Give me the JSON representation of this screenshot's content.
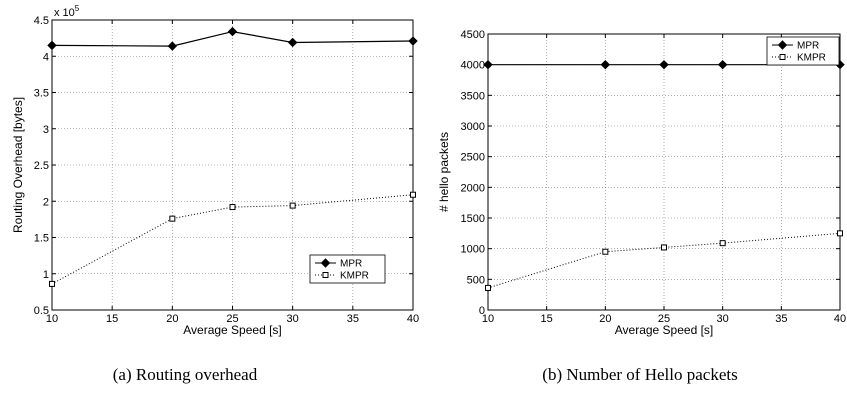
{
  "chart_data": [
    {
      "type": "line",
      "caption": "(a) Routing overhead",
      "xlabel": "Average Speed [s]",
      "ylabel": "Routing Overhead [bytes]",
      "multiplier": "x 10",
      "multiplier_exp": "5",
      "xlim": [
        10,
        40
      ],
      "ylim": [
        0.5,
        4.5
      ],
      "xticks": [
        "10",
        "15",
        "20",
        "25",
        "30",
        "35",
        "40"
      ],
      "yticks": [
        "0.5",
        "1",
        "1.5",
        "2",
        "2.5",
        "3",
        "3.5",
        "4",
        "4.5"
      ],
      "grid": true,
      "legend_position": "lower-right",
      "series": [
        {
          "name": "MPR",
          "marker": "diamond",
          "style": "solid",
          "x": [
            10,
            20,
            25,
            30,
            40
          ],
          "y": [
            4.15,
            4.14,
            4.34,
            4.19,
            4.21
          ]
        },
        {
          "name": "KMPR",
          "marker": "square",
          "style": "dotted",
          "x": [
            10,
            20,
            25,
            30,
            40
          ],
          "y": [
            0.86,
            1.76,
            1.92,
            1.94,
            2.09
          ]
        }
      ]
    },
    {
      "type": "line",
      "caption": "(b) Number of Hello packets",
      "xlabel": "Average Speed [s]",
      "ylabel": "# hello packets",
      "xlim": [
        10,
        40
      ],
      "ylim": [
        0,
        4500
      ],
      "xticks": [
        "10",
        "15",
        "20",
        "25",
        "30",
        "35",
        "40"
      ],
      "yticks": [
        "0",
        "500",
        "1000",
        "1500",
        "2000",
        "2500",
        "3000",
        "3500",
        "4000",
        "4500"
      ],
      "grid": true,
      "legend_position": "top-right",
      "series": [
        {
          "name": "MPR",
          "marker": "diamond",
          "style": "solid",
          "x": [
            10,
            20,
            25,
            30,
            40
          ],
          "y": [
            4000,
            4000,
            4000,
            4000,
            4000
          ]
        },
        {
          "name": "KMPR",
          "marker": "square",
          "style": "dotted",
          "x": [
            10,
            20,
            25,
            30,
            40
          ],
          "y": [
            360,
            950,
            1020,
            1090,
            1250
          ]
        }
      ]
    }
  ]
}
